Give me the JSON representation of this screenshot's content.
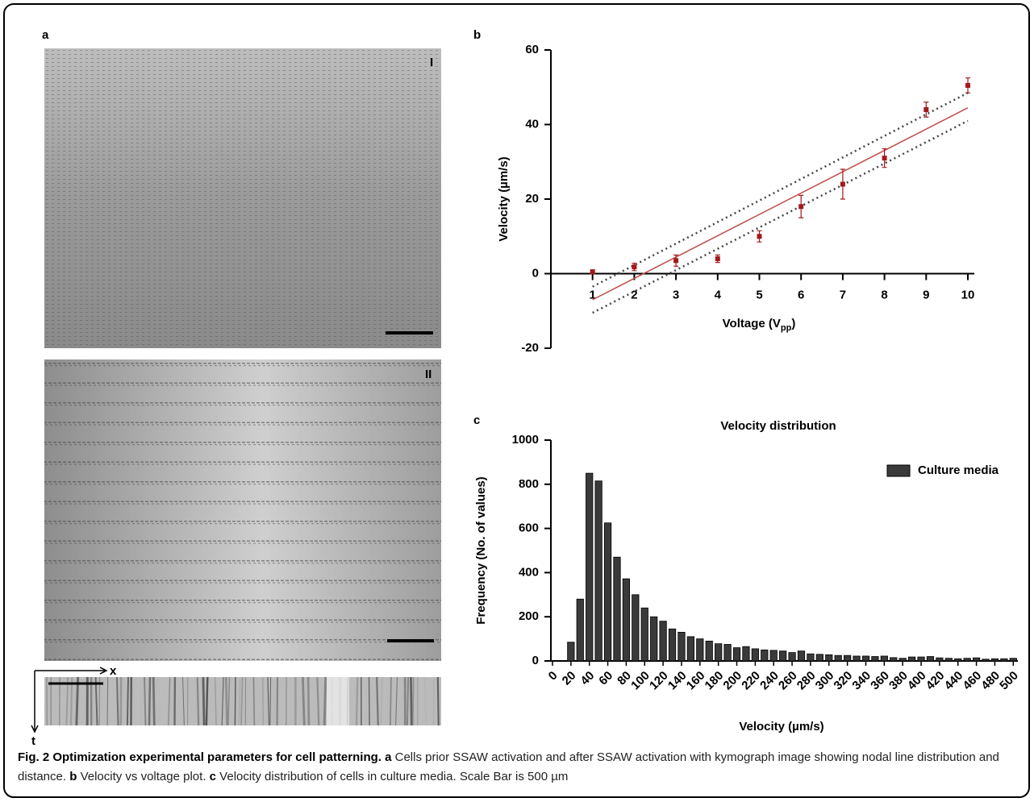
{
  "figure": {
    "panel_labels": [
      "a",
      "b",
      "c"
    ],
    "image_labels": [
      "I",
      "II"
    ],
    "kymograph_axes": [
      "x",
      "t"
    ]
  },
  "chart_data": [
    {
      "type": "scatter",
      "xlabel": "Voltage (V",
      "xlabel_sub": "pp",
      "xlabel_end": ")",
      "ylabel": "Velocity (µm/s)",
      "x": [
        1,
        2,
        3,
        4,
        5,
        6,
        7,
        8,
        9,
        10
      ],
      "values": [
        0.5,
        1.8,
        3.5,
        4,
        10,
        18,
        24,
        31,
        44,
        50.5
      ],
      "errors": [
        0.5,
        1,
        1.5,
        1,
        1.5,
        3,
        4,
        2.5,
        2,
        2
      ],
      "color": "#a3191c",
      "fit": {
        "x": [
          1,
          10
        ],
        "values": [
          -7,
          44.5
        ],
        "color": "#c0504d"
      },
      "band": {
        "x": [
          1,
          10
        ],
        "upper": [
          -3.5,
          48.5
        ],
        "lower": [
          -10.5,
          41
        ],
        "color": "#444444"
      },
      "xlim": [
        0,
        10
      ],
      "ylim": [
        -20,
        60
      ],
      "xticks": [
        1,
        2,
        3,
        4,
        5,
        6,
        7,
        8,
        9,
        10
      ],
      "yticks": [
        -20,
        0,
        20,
        40,
        60
      ]
    },
    {
      "type": "histogram",
      "title": "Velocity distribution",
      "xlabel": "Velocity (µm/s)",
      "ylabel": "Frequency (No. of values)",
      "bins": [
        15,
        25,
        35,
        45,
        55,
        65,
        75,
        85,
        95,
        105,
        115,
        125,
        135,
        145,
        155,
        165,
        175,
        185,
        195,
        205,
        215,
        225,
        235,
        245,
        255,
        265,
        275,
        285,
        295,
        305,
        315,
        325,
        335,
        345,
        355,
        365,
        375,
        385,
        395,
        405,
        415,
        425,
        435,
        445,
        455,
        465,
        475,
        485,
        495,
        505
      ],
      "series": [
        {
          "name": "Culture media",
          "color": "#3a3a3a",
          "values": [
            85,
            280,
            850,
            815,
            625,
            470,
            372,
            300,
            240,
            200,
            180,
            145,
            130,
            110,
            100,
            90,
            78,
            75,
            60,
            65,
            55,
            50,
            48,
            45,
            38,
            45,
            32,
            30,
            28,
            25,
            25,
            22,
            22,
            20,
            22,
            15,
            12,
            18,
            18,
            20,
            14,
            12,
            10,
            12,
            14,
            8,
            10,
            10,
            12
          ]
        }
      ],
      "legend": "upper right",
      "xlim": [
        0,
        505
      ],
      "ylim": [
        0,
        1000
      ],
      "xticks": [
        0,
        20,
        40,
        60,
        80,
        100,
        120,
        140,
        160,
        180,
        200,
        220,
        240,
        260,
        280,
        300,
        320,
        340,
        360,
        380,
        400,
        420,
        440,
        460,
        480,
        500
      ],
      "yticks": [
        0,
        200,
        400,
        600,
        800,
        1000
      ]
    }
  ],
  "caption": {
    "title": "Fig. 2 Optimization experimental parameters for cell patterning.",
    "segments": [
      {
        "label": "a",
        "text": "Cells prior SSAW activation and after SSAW activation with kymograph image showing nodal line distribution and distance."
      },
      {
        "label": "b",
        "text": "Velocity vs voltage plot."
      },
      {
        "label": "c",
        "text": "Velocity distribution of cells in culture media. Scale Bar is 500 µm"
      }
    ]
  }
}
